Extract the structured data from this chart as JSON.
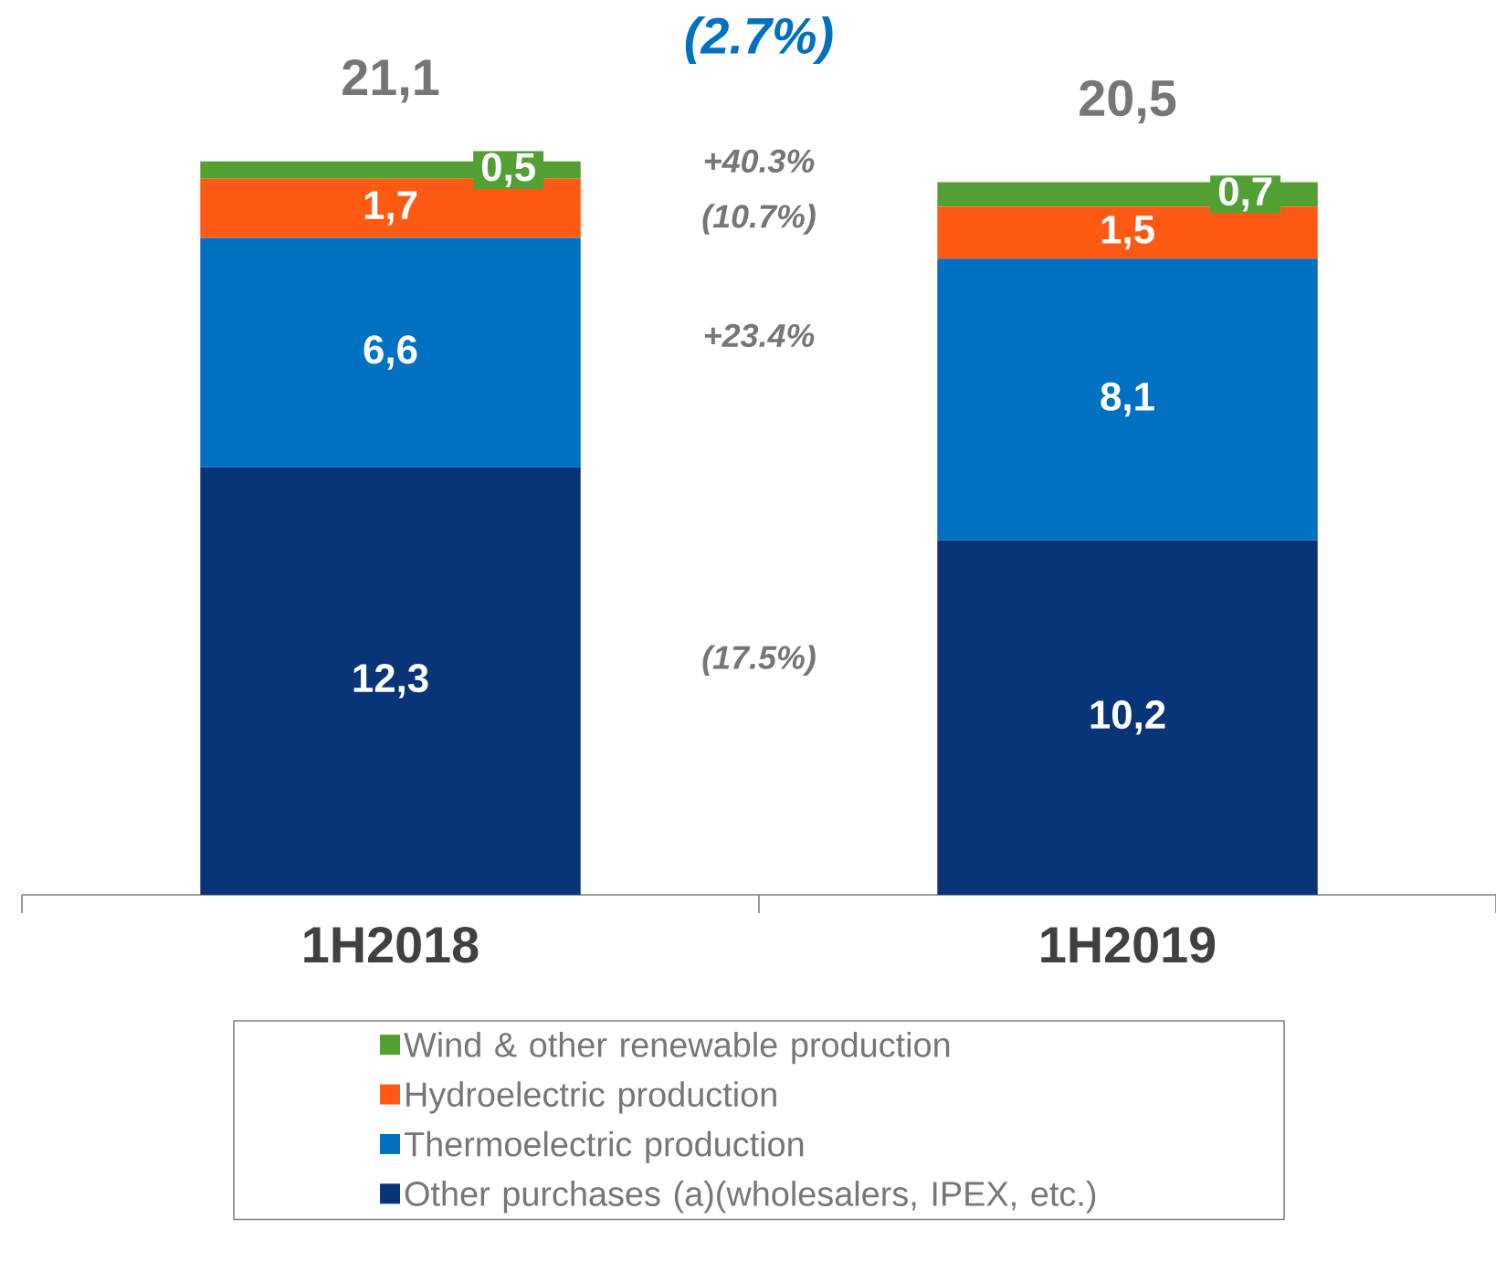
{
  "chart_data": {
    "type": "bar",
    "stacked": true,
    "categories": [
      "1H2018",
      "1H2019"
    ],
    "series": [
      {
        "name": "Other purchases (a)(wholesalers, IPEX, etc.)",
        "color": "#0a3478",
        "values": [
          12.3,
          10.2
        ],
        "value_labels": [
          "12,3",
          "10,2"
        ]
      },
      {
        "name": "Thermoelectric production",
        "color": "#0070c0",
        "values": [
          6.6,
          8.1
        ],
        "value_labels": [
          "6,6",
          "8,1"
        ]
      },
      {
        "name": "Hydroelectric production",
        "color": "#ff5a14",
        "values": [
          1.7,
          1.5
        ],
        "value_labels": [
          "1,7",
          "1,5"
        ]
      },
      {
        "name": "Wind & other renewable production",
        "color": "#52a033",
        "values": [
          0.5,
          0.7
        ],
        "value_labels": [
          "0,5",
          "0,7"
        ]
      }
    ],
    "totals": [
      "21,1",
      "20,5"
    ],
    "annotations": [
      "(2.7%)",
      "+40.3%",
      "(10.7%)",
      "+23.4%",
      "(17.5%)"
    ],
    "legend": "bottom"
  }
}
